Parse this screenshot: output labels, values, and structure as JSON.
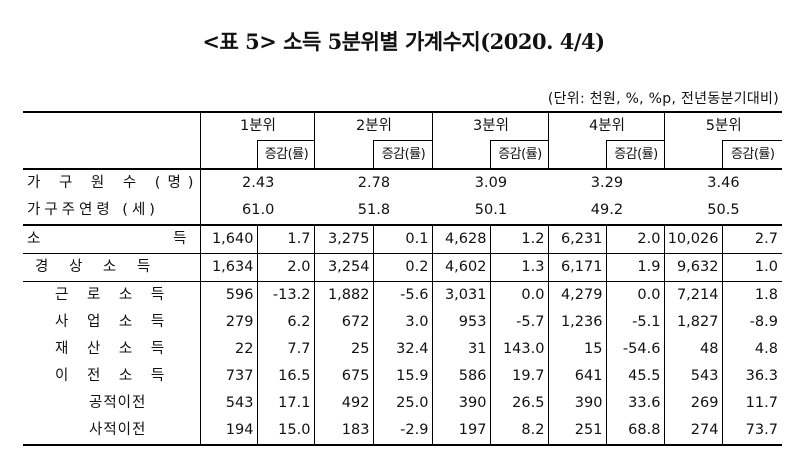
{
  "title": "<표 5> 소득 5분위별 가계수지(2020. 4/4)",
  "unit": "(단위: 천원, %, %p, 전년동분기대비)",
  "quintiles": [
    "1분위",
    "2분위",
    "3분위",
    "4분위",
    "5분위"
  ],
  "change_label": "증감(률)",
  "rows": [
    {
      "label": "가 구 원 수 (명)",
      "values": [
        "2.43",
        "2.78",
        "3.09",
        "3.29",
        "3.46"
      ]
    },
    {
      "label": "가구주연령 (세)",
      "values": [
        "61.0",
        "51.8",
        "50.1",
        "49.2",
        "50.5"
      ]
    },
    {
      "label": "소 득",
      "values": [
        "1,640",
        "1.7",
        "3,275",
        "0.1",
        "4,628",
        "1.2",
        "6,231",
        "2.0",
        "10,026",
        "2.7"
      ]
    },
    {
      "label": "경 상 소 득",
      "values": [
        "1,634",
        "2.0",
        "3,254",
        "0.2",
        "4,602",
        "1.3",
        "6,171",
        "1.9",
        "9,632",
        "1.0"
      ]
    },
    {
      "label": "근 로 소 득",
      "values": [
        "596",
        "-13.2",
        "1,882",
        "-5.6",
        "3,031",
        "0.0",
        "4,279",
        "0.0",
        "7,214",
        "1.8"
      ]
    },
    {
      "label": "사 업 소 득",
      "values": [
        "279",
        "6.2",
        "672",
        "3.0",
        "953",
        "-5.7",
        "1,236",
        "-5.1",
        "1,827",
        "-8.9"
      ]
    },
    {
      "label": "재 산 소 득",
      "values": [
        "22",
        "7.7",
        "25",
        "32.4",
        "31",
        "143.0",
        "15",
        "-54.6",
        "48",
        "4.8"
      ]
    },
    {
      "label": "이 전 소 득",
      "values": [
        "737",
        "16.5",
        "675",
        "15.9",
        "586",
        "19.7",
        "641",
        "45.5",
        "543",
        "36.3"
      ]
    },
    {
      "label": "공적이전",
      "values": [
        "543",
        "17.1",
        "492",
        "25.0",
        "390",
        "26.5",
        "390",
        "33.6",
        "269",
        "11.7"
      ]
    },
    {
      "label": "사적이전",
      "values": [
        "194",
        "15.0",
        "183",
        "-2.9",
        "197",
        "8.2",
        "251",
        "68.8",
        "274",
        "73.7"
      ]
    }
  ]
}
